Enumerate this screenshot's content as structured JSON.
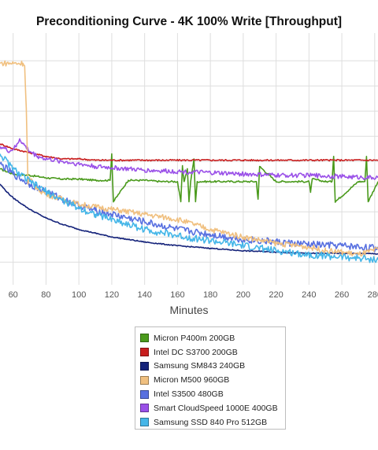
{
  "chart_data": {
    "type": "line",
    "title": "Preconditioning Curve - 4K 100% Write [Throughput]",
    "xlabel": "Minutes",
    "ylabel": "",
    "xlim": [
      52,
      282
    ],
    "ylim": [
      0,
      100
    ],
    "x_ticks": [
      60,
      80,
      100,
      120,
      140,
      160,
      180,
      200,
      220,
      240,
      260,
      280
    ],
    "x_tick_labels": [
      "60",
      "80",
      "100",
      "120",
      "140",
      "160",
      "180",
      "200",
      "220",
      "240",
      "260",
      "280"
    ],
    "y_gridlines": [
      9,
      19,
      29,
      39,
      49,
      59,
      69,
      79,
      89
    ],
    "grid": true,
    "legend_position": "bottom-center",
    "series": [
      {
        "name": "Micron P400m 200GB",
        "color": "#4a9a1c",
        "x": [
          52,
          60,
          70,
          80,
          90,
          100,
          110,
          119,
          120,
          121,
          130,
          140,
          150,
          160,
          162,
          163,
          164,
          166,
          167,
          168,
          170,
          171,
          172,
          180,
          190,
          200,
          208,
          209,
          210,
          220,
          230,
          240,
          241,
          242,
          250,
          254,
          255,
          256,
          270,
          274,
          275,
          276,
          282
        ],
        "y": [
          46,
          44,
          43.5,
          42.5,
          42,
          42,
          41.5,
          41.5,
          52,
          33,
          41.5,
          41.5,
          41,
          41,
          33,
          47,
          41,
          46,
          33,
          41,
          50,
          33,
          41,
          41,
          41,
          41,
          41,
          34,
          47,
          41,
          41,
          41,
          37,
          42,
          41,
          41,
          51,
          33,
          41,
          41,
          51,
          33,
          41
        ]
      },
      {
        "name": "Intel DC S3700 200GB",
        "color": "#c81e1e",
        "x": [
          52,
          60,
          70,
          80,
          90,
          100,
          110,
          120,
          130,
          140,
          160,
          180,
          200,
          220,
          240,
          260,
          282
        ],
        "y": [
          56,
          54,
          52.5,
          51,
          50,
          50,
          49.5,
          49.5,
          49.5,
          49.5,
          49.5,
          49.5,
          49.5,
          49.5,
          49.5,
          49.5,
          49.5
        ]
      },
      {
        "name": "Samsung SM843 240GB",
        "color": "#15237a",
        "x": [
          52,
          56,
          60,
          70,
          80,
          90,
          100,
          110,
          120,
          130,
          140,
          160,
          180,
          200,
          220,
          240,
          260,
          282
        ],
        "y": [
          40,
          37,
          34.5,
          30,
          26.5,
          24,
          22,
          20.5,
          19,
          18,
          17,
          15.5,
          14.5,
          13.5,
          13,
          12.5,
          12.5,
          12.3
        ]
      },
      {
        "name": "Micron M500 960GB",
        "color": "#f0c080",
        "x": [
          52,
          60,
          66,
          67,
          68,
          69,
          70,
          75,
          80,
          90,
          100,
          110,
          120,
          130,
          140,
          150,
          160,
          170,
          180,
          200,
          220,
          240,
          250,
          260,
          270,
          282
        ],
        "y": [
          88,
          88,
          88,
          87,
          70,
          40,
          42,
          38,
          36,
          34,
          32,
          31,
          30,
          29,
          28,
          27,
          26,
          24,
          22,
          19,
          16.5,
          15,
          13.5,
          13,
          12,
          14
        ]
      },
      {
        "name": "Intel S3500 480GB",
        "color": "#5870e0",
        "x": [
          52,
          60,
          70,
          80,
          90,
          100,
          110,
          120,
          130,
          140,
          160,
          180,
          200,
          220,
          240,
          260,
          282
        ],
        "y": [
          48,
          44,
          40,
          37,
          34,
          31.5,
          29.5,
          28,
          26.5,
          25,
          22,
          20,
          18,
          17,
          16,
          15.5,
          14.5
        ]
      },
      {
        "name": "Smart CloudSpeed 1000E 400GB",
        "color": "#9a50e8",
        "x": [
          52,
          58,
          62,
          64,
          66,
          70,
          75,
          80,
          90,
          100,
          110,
          120,
          130,
          140,
          160,
          180,
          200,
          220,
          240,
          260,
          282
        ],
        "y": [
          55,
          53,
          55,
          58,
          56,
          53,
          51,
          50,
          49,
          48,
          47,
          46.5,
          46,
          45.5,
          45,
          44.5,
          44,
          43.5,
          43.5,
          43,
          42.5
        ]
      },
      {
        "name": "Samsung SSD 840 Pro 512GB",
        "color": "#45b6e8",
        "x": [
          52,
          60,
          70,
          80,
          90,
          100,
          110,
          120,
          130,
          140,
          160,
          180,
          200,
          220,
          240,
          260,
          282
        ],
        "y": [
          52,
          46,
          41,
          37,
          33.5,
          30.5,
          28,
          26,
          24,
          22,
          19.5,
          17.5,
          15.5,
          13.5,
          12,
          11,
          10
        ]
      }
    ]
  }
}
